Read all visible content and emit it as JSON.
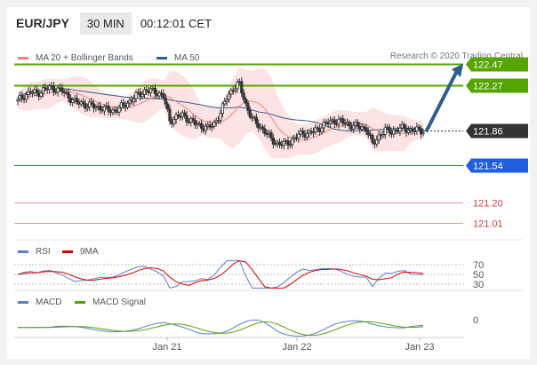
{
  "header": {
    "pair": "EUR/JPY",
    "timeframe": "30 MIN",
    "time": "00:12:01 CET"
  },
  "legend": {
    "ma20": {
      "label": "MA 20 + Bollinger Bands",
      "color": "#f08080"
    },
    "ma50": {
      "label": "MA 50",
      "color": "#2f5d8e"
    },
    "rsi": {
      "label": "RSI",
      "color": "#5b7fcc"
    },
    "ma9": {
      "label": "9MA",
      "color": "#e00000"
    },
    "macd": {
      "label": "MACD",
      "color": "#5b7fcc"
    },
    "macd_signal": {
      "label": "MACD Signal",
      "color": "#55a500"
    }
  },
  "credit": "Research © 2020 Trading Central",
  "chart_data": {
    "type": "candlestick",
    "x_ticks": [
      "Jan 21",
      "Jan 22",
      "Jan 23"
    ],
    "price_axis": {
      "min": 120.9,
      "max": 122.55
    },
    "levels": [
      {
        "value": "122.47",
        "color": "#55a500",
        "style": "resistance"
      },
      {
        "value": "122.27",
        "color": "#55a500",
        "style": "resistance"
      },
      {
        "value": "121.86",
        "color": "#333333",
        "style": "current"
      },
      {
        "value": "121.54",
        "color": "#1f5fe0",
        "style": "support"
      },
      {
        "value": "121.20",
        "color": "#e89a9a",
        "style": "support"
      },
      {
        "value": "121.01",
        "color": "#e89a9a",
        "style": "support"
      }
    ],
    "close_path": [
      122.13,
      122.18,
      122.21,
      122.2,
      122.23,
      122.25,
      122.24,
      122.22,
      122.17,
      122.12,
      122.11,
      122.09,
      122.08,
      122.07,
      122.05,
      122.04,
      122.06,
      122.1,
      122.14,
      122.19,
      122.22,
      122.22,
      122.21,
      122.17,
      121.95,
      121.98,
      122.0,
      121.96,
      121.92,
      121.9,
      121.88,
      121.92,
      122.02,
      122.16,
      122.25,
      122.28,
      122.1,
      121.96,
      121.91,
      121.85,
      121.78,
      121.74,
      121.73,
      121.76,
      121.8,
      121.84,
      121.83,
      121.86,
      121.9,
      121.93,
      121.95,
      121.94,
      121.92,
      121.9,
      121.89,
      121.88,
      121.73,
      121.81,
      121.86,
      121.85,
      121.87,
      121.88,
      121.86,
      121.86,
      121.86
    ],
    "rsi": {
      "levels": [
        70,
        50,
        30
      ]
    },
    "macd": {
      "levels": [
        0
      ]
    },
    "forecast": {
      "from": 121.86,
      "to": 122.47
    }
  }
}
